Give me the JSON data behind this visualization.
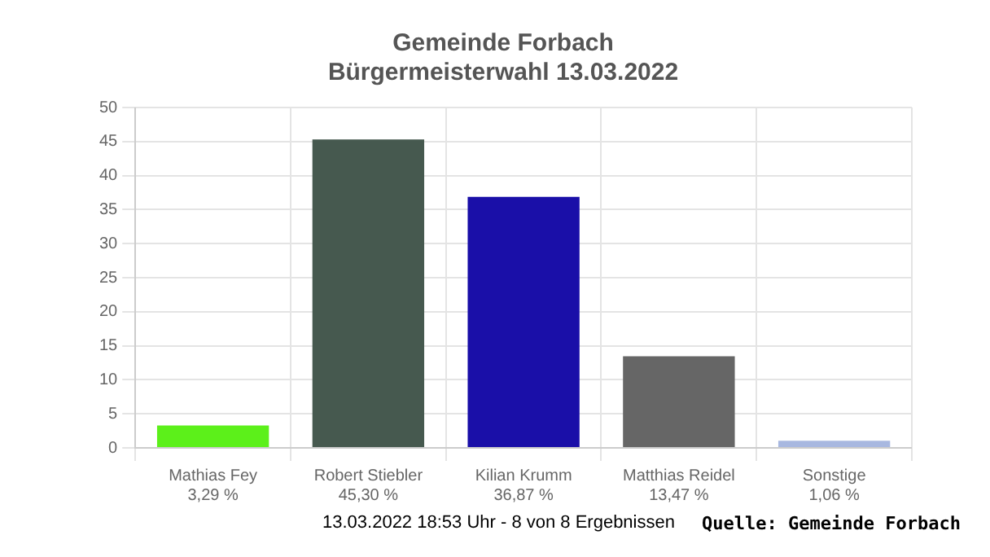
{
  "chart_data": {
    "type": "bar",
    "title": "Gemeinde Forbach",
    "subtitle": "Bürgermeisterwahl 13.03.2022",
    "categories": [
      "Mathias Fey",
      "Robert Stiebler",
      "Kilian Krumm",
      "Matthias Reidel",
      "Sonstige"
    ],
    "values": [
      3.29,
      45.3,
      36.87,
      13.47,
      1.06
    ],
    "value_labels": [
      "3,29 %",
      "45,30 %",
      "36,87 %",
      "13,47 %",
      "1,06 %"
    ],
    "colors": [
      "#5cf01a",
      "#46594f",
      "#1a0fa8",
      "#666666",
      "#a8b8e0"
    ],
    "ylim": [
      0,
      50
    ],
    "yticks": [
      0,
      5,
      10,
      15,
      20,
      25,
      30,
      35,
      40,
      45,
      50
    ],
    "grid": true,
    "annotations": [
      "13.03.2022 18:53 Uhr - 8 von 8 Ergebnissen",
      "Quelle: Gemeinde Forbach"
    ]
  }
}
